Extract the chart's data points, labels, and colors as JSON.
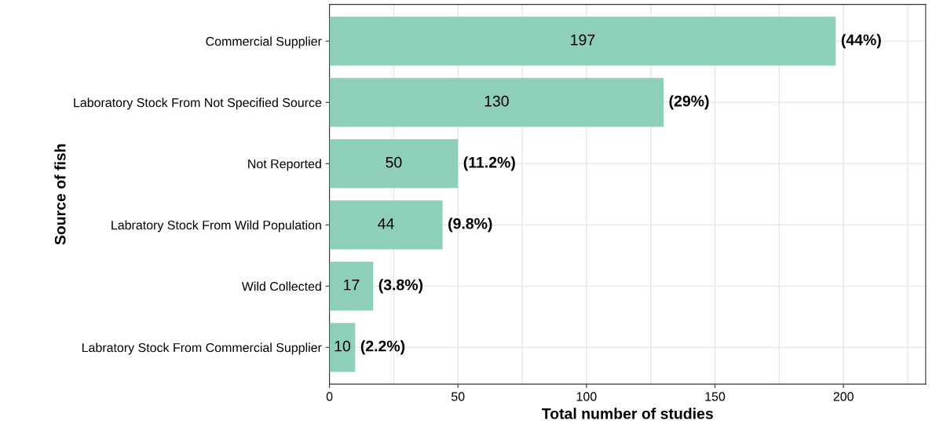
{
  "chart_data": {
    "type": "bar",
    "orientation": "horizontal",
    "xlabel": "Total number of studies",
    "ylabel": "Source of fish",
    "categories": [
      "Commercial Supplier",
      "Laboratory Stock From Not Specified Source",
      "Not Reported",
      "Labratory Stock From Wild Population",
      "Wild Collected",
      "Labratory Stock From Commercial Supplier"
    ],
    "values": [
      197,
      130,
      50,
      44,
      17,
      10
    ],
    "annotations": [
      {
        "text": "(44%)",
        "x": 197,
        "y": "Commercial Supplier"
      },
      {
        "text": "(29%)",
        "x": 130,
        "y": "Laboratory Stock From Not Specified Source"
      },
      {
        "text": "(11.2%)",
        "x": 50,
        "y": "Not Reported"
      },
      {
        "text": "(9.8%)",
        "x": 44,
        "y": "Labratory Stock From Wild Population"
      },
      {
        "text": "(3.8%)",
        "x": 17,
        "y": "Wild Collected"
      },
      {
        "text": "(2.2%)",
        "x": 10,
        "y": "Labratory Stock From Commercial Supplier"
      }
    ],
    "data_labels": true,
    "color": "#8ecfb8",
    "xlim": [
      0,
      232
    ],
    "xticks": [
      0,
      {
        "value": 25,
        "label": null
      },
      50,
      {
        "value": 75,
        "label": null
      },
      100,
      {
        "value": 125,
        "label": null
      },
      150,
      {
        "value": 175,
        "label": null
      },
      200,
      {
        "value": 225,
        "label": null
      }
    ],
    "grid": true
  }
}
